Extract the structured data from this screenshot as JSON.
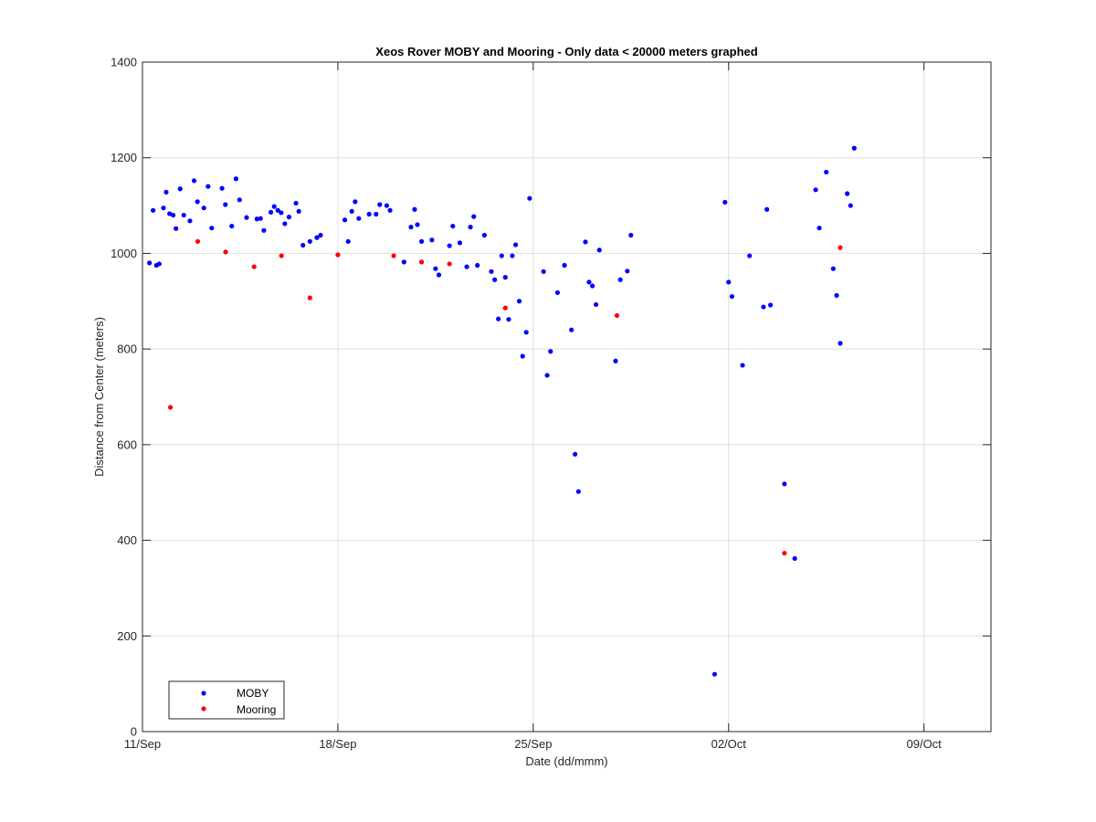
{
  "chart_data": {
    "type": "scatter",
    "title": "Xeos Rover MOBY and Mooring - Only data < 20000 meters graphed",
    "xlabel": "Date (dd/mmm)",
    "ylabel": "Distance from Center (meters)",
    "xlim": [
      "11/Sep",
      "12/Oct"
    ],
    "ylim": [
      0,
      1400
    ],
    "x_ticks": [
      {
        "label": "11/Sep",
        "day": 11
      },
      {
        "label": "18/Sep",
        "day": 18
      },
      {
        "label": "25/Sep",
        "day": 25
      },
      {
        "label": "02/Oct",
        "day": 32
      },
      {
        "label": "09/Oct",
        "day": 39
      }
    ],
    "y_ticks": [
      0,
      200,
      400,
      600,
      800,
      1000,
      1200,
      1400
    ],
    "grid": true,
    "legend_position": "bottom-left",
    "colors": {
      "moby": "#0000ff",
      "mooring": "#ff0000"
    },
    "series": [
      {
        "name": "MOBY",
        "color": "#0000ff",
        "points": [
          [
            11.25,
            980
          ],
          [
            11.38,
            1090
          ],
          [
            11.5,
            975
          ],
          [
            11.6,
            978
          ],
          [
            11.75,
            1095
          ],
          [
            11.85,
            1128
          ],
          [
            11.97,
            1083
          ],
          [
            12.1,
            1080
          ],
          [
            12.2,
            1052
          ],
          [
            12.35,
            1135
          ],
          [
            12.48,
            1080
          ],
          [
            12.7,
            1068
          ],
          [
            12.85,
            1152
          ],
          [
            12.97,
            1108
          ],
          [
            13.2,
            1095
          ],
          [
            13.35,
            1140
          ],
          [
            13.48,
            1053
          ],
          [
            13.85,
            1136
          ],
          [
            13.97,
            1102
          ],
          [
            14.2,
            1057
          ],
          [
            14.35,
            1156
          ],
          [
            14.48,
            1112
          ],
          [
            14.73,
            1075
          ],
          [
            15.1,
            1072
          ],
          [
            15.23,
            1073
          ],
          [
            15.35,
            1048
          ],
          [
            15.6,
            1086
          ],
          [
            15.72,
            1098
          ],
          [
            15.85,
            1090
          ],
          [
            15.97,
            1085
          ],
          [
            16.1,
            1062
          ],
          [
            16.25,
            1076
          ],
          [
            16.5,
            1105
          ],
          [
            16.6,
            1088
          ],
          [
            16.75,
            1017
          ],
          [
            17.0,
            1025
          ],
          [
            17.25,
            1033
          ],
          [
            17.38,
            1038
          ],
          [
            18.25,
            1070
          ],
          [
            18.37,
            1025
          ],
          [
            18.5,
            1088
          ],
          [
            18.62,
            1108
          ],
          [
            18.75,
            1073
          ],
          [
            19.12,
            1082
          ],
          [
            19.37,
            1082
          ],
          [
            19.5,
            1102
          ],
          [
            19.75,
            1100
          ],
          [
            19.87,
            1090
          ],
          [
            20.37,
            982
          ],
          [
            20.62,
            1055
          ],
          [
            20.75,
            1092
          ],
          [
            20.85,
            1060
          ],
          [
            21.0,
            1025
          ],
          [
            21.37,
            1028
          ],
          [
            21.5,
            968
          ],
          [
            21.62,
            955
          ],
          [
            22.0,
            1016
          ],
          [
            22.12,
            1057
          ],
          [
            22.37,
            1022
          ],
          [
            22.62,
            972
          ],
          [
            22.75,
            1055
          ],
          [
            22.87,
            1077
          ],
          [
            23.0,
            975
          ],
          [
            23.25,
            1038
          ],
          [
            23.5,
            962
          ],
          [
            23.62,
            945
          ],
          [
            23.75,
            863
          ],
          [
            23.87,
            995
          ],
          [
            24.0,
            950
          ],
          [
            24.12,
            862
          ],
          [
            24.25,
            995
          ],
          [
            24.37,
            1018
          ],
          [
            24.5,
            900
          ],
          [
            24.62,
            785
          ],
          [
            24.75,
            835
          ],
          [
            24.87,
            1115
          ],
          [
            25.37,
            962
          ],
          [
            25.5,
            745
          ],
          [
            25.62,
            795
          ],
          [
            25.87,
            918
          ],
          [
            26.12,
            975
          ],
          [
            26.37,
            840
          ],
          [
            26.5,
            580
          ],
          [
            26.62,
            502
          ],
          [
            26.87,
            1024
          ],
          [
            27.0,
            940
          ],
          [
            27.12,
            932
          ],
          [
            27.25,
            893
          ],
          [
            27.37,
            1007
          ],
          [
            27.95,
            775
          ],
          [
            28.12,
            945
          ],
          [
            28.37,
            963
          ],
          [
            28.5,
            1038
          ],
          [
            31.5,
            120
          ],
          [
            31.87,
            1107
          ],
          [
            32.0,
            940
          ],
          [
            32.12,
            910
          ],
          [
            32.5,
            766
          ],
          [
            32.75,
            995
          ],
          [
            33.25,
            888
          ],
          [
            33.37,
            1092
          ],
          [
            33.5,
            892
          ],
          [
            34.0,
            518
          ],
          [
            34.37,
            362
          ],
          [
            35.12,
            1133
          ],
          [
            35.25,
            1053
          ],
          [
            35.5,
            1170
          ],
          [
            35.75,
            968
          ],
          [
            35.87,
            912
          ],
          [
            36.0,
            812
          ],
          [
            36.25,
            1125
          ],
          [
            36.37,
            1100
          ],
          [
            36.5,
            1220
          ]
        ]
      },
      {
        "name": "Mooring",
        "color": "#ff0000",
        "points": [
          [
            12.0,
            678
          ],
          [
            12.98,
            1025
          ],
          [
            13.98,
            1003
          ],
          [
            15.0,
            972
          ],
          [
            15.98,
            995
          ],
          [
            17.0,
            907
          ],
          [
            18.0,
            997
          ],
          [
            20.0,
            995
          ],
          [
            21.0,
            982
          ],
          [
            22.0,
            978
          ],
          [
            24.0,
            886
          ],
          [
            28.0,
            870
          ],
          [
            34.0,
            373
          ],
          [
            36.0,
            1012
          ]
        ]
      }
    ]
  }
}
